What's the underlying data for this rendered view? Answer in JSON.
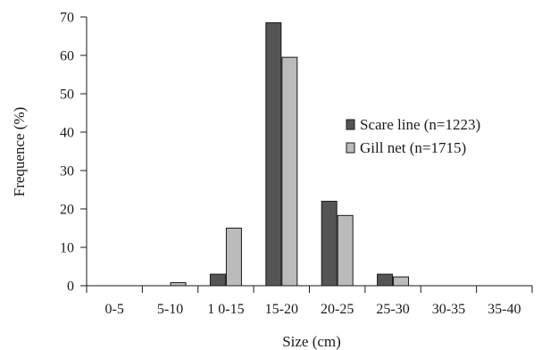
{
  "chart_data": {
    "type": "bar",
    "title": "",
    "xlabel": "Size  (cm)",
    "ylabel": "Frequence (%)",
    "ylim": [
      0,
      70
    ],
    "yticks": [
      0,
      10,
      20,
      30,
      40,
      50,
      60,
      70
    ],
    "grid": false,
    "legend_position": "right",
    "categories": [
      "0-5",
      "5-10",
      "1 0-15",
      "15-20",
      "20-25",
      "25-30",
      "30-35",
      "35-40"
    ],
    "series": [
      {
        "name": "Scare line (n=1223)",
        "color": "#555555",
        "values": [
          0,
          0,
          3,
          68.5,
          22,
          3,
          0,
          0
        ]
      },
      {
        "name": "Gill net (n=1715)",
        "color": "#bbbbbb",
        "values": [
          0,
          0.8,
          15,
          59.5,
          18.3,
          2.3,
          0,
          0
        ]
      }
    ]
  }
}
